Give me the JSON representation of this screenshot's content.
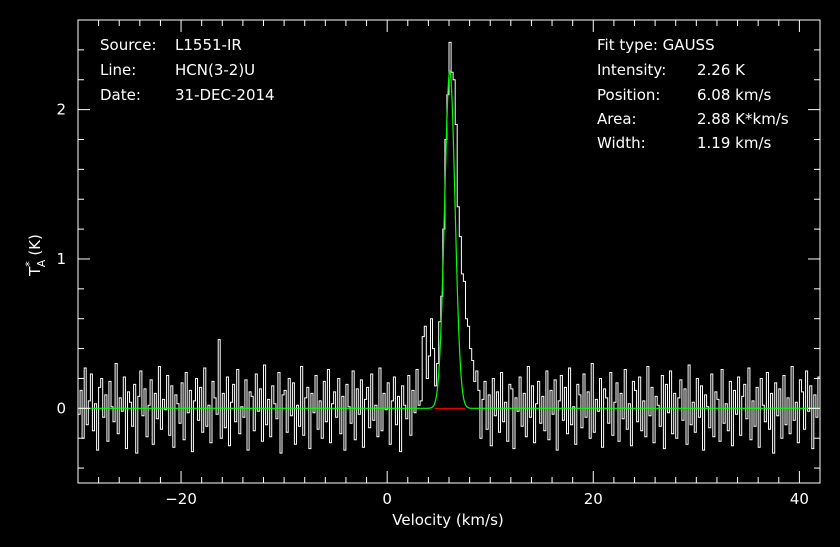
{
  "header_info": {
    "source_label": "Source:",
    "source_value": "L1551-IR",
    "line_label": "Line:",
    "line_value": "HCN(3-2)U",
    "date_label": "Date:",
    "date_value": "31-DEC-2014"
  },
  "fit_info": {
    "fit_type": "Fit type: GAUSS",
    "intensity_label": "Intensity:",
    "intensity_value": "2.26 K",
    "position_label": "Position:",
    "position_value": "6.08 km/s",
    "area_label": "Area:",
    "area_value": "2.88 K*km/s",
    "width_label": "Width:",
    "width_value": "1.19 km/s"
  },
  "chart_data": {
    "type": "line",
    "xlabel": "Velocity (km/s)",
    "ylabel": "T",
    "ylabel_sub": "A",
    "ylabel_sup": "*",
    "ylabel_unit": "(K)",
    "xlim": [
      -30,
      42
    ],
    "ylim": [
      -0.5,
      2.6
    ],
    "x_ticks": [
      -20,
      0,
      20,
      40
    ],
    "x_tick_labels": [
      "−20",
      "0",
      "20",
      "40"
    ],
    "y_ticks": [
      0,
      1,
      2
    ],
    "y_tick_labels": [
      "0",
      "1",
      "2"
    ],
    "colors": {
      "spectrum": "#ffffff",
      "fit": "#00ff00",
      "baseline": "#ff0000",
      "axes": "#ffffff"
    },
    "channel_start": -30,
    "channel_width": 0.2,
    "spectrum_noise": [
      -0.04,
      0.12,
      -0.2,
      0.27,
      -0.11,
      0.05,
      0.23,
      -0.15,
      0.03,
      -0.28,
      0.14,
      0.2,
      -0.06,
      0.09,
      -0.22,
      0.18,
      0.01,
      -0.09,
      0.3,
      -0.17,
      0.07,
      -0.02,
      0.21,
      -0.27,
      0.11,
      0.04,
      -0.12,
      0.16,
      -0.3,
      0.08,
      0.25,
      -0.05,
      0.13,
      -0.19,
      0.02,
      0.19,
      -0.24,
      0.1,
      -0.07,
      0.28,
      -0.14,
      0.06,
      -0.01,
      0.22,
      -0.18,
      0.15,
      -0.26,
      0.09,
      0.03,
      -0.1,
      0.17,
      -0.21,
      0.24,
      -0.03,
      0.12,
      -0.29,
      0.05,
      0.2,
      -0.08,
      0.14,
      -0.16,
      0.27,
      -0.12,
      0.02,
      -0.23,
      0.18,
      0.07,
      -0.04,
      0.46,
      -0.2,
      0.1,
      -0.13,
      0.21,
      -0.25,
      0.04,
      0.16,
      -0.09,
      0.26,
      -0.17,
      0.01,
      -0.06,
      0.19,
      -0.28,
      0.11,
      0.08,
      -0.15,
      0.23,
      -0.02,
      0.13,
      -0.22,
      0.29,
      -0.11,
      0.06,
      -0.19,
      0.15,
      0.03,
      -0.07,
      0.24,
      -0.3,
      0.09,
      0.12,
      -0.16,
      0.2,
      -0.05,
      0.17,
      -0.24,
      0.02,
      -0.12,
      0.28,
      -0.18,
      0.07,
      0.14,
      -0.27,
      0.1,
      -0.03,
      0.22,
      -0.14,
      0.05,
      -0.2,
      0.18,
      -0.09,
      0.26,
      -0.23,
      0.03,
      0.11,
      -0.06,
      0.2,
      -0.17,
      0.08,
      -0.28,
      0.16,
      0.01,
      -0.1,
      0.25,
      -0.21,
      0.13,
      -0.04,
      0.19,
      -0.26,
      0.06,
      0.14,
      -0.13,
      0.23,
      -0.08,
      0.02,
      -0.19,
      0.27,
      -0.15,
      0.1,
      -0.01,
      0.17,
      -0.24,
      0.05,
      0.21,
      -0.11,
      0.08,
      -0.29,
      0.15,
      0.02,
      -0.07,
      0.22,
      -0.18,
      0.12,
      -0.03,
      0.26,
      -0.2,
      0.06,
      0.18,
      -0.14,
      0.09,
      -0.25,
      0.2,
      -0.05,
      0.11,
      -0.16,
      0.24,
      -0.09,
      0.04,
      -0.22,
      0.16,
      0.13,
      -0.27,
      0.07,
      -0.02,
      0.21,
      -0.12,
      0.1,
      -0.19,
      0.28,
      -0.06,
      0.15,
      -0.23,
      0.03,
      0.18,
      -0.1,
      0.08,
      -0.15,
      0.25,
      -0.21,
      0.12,
      -0.04,
      0.19,
      -0.28,
      0.05,
      0.22,
      -0.08,
      0.14,
      -0.17,
      0.27,
      -0.11,
      0.01,
      -0.24,
      0.16,
      0.09,
      -0.13,
      0.23,
      -0.06,
      0.11,
      -0.2,
      0.3,
      -0.16,
      0.06,
      -0.02,
      0.2,
      -0.26,
      0.13,
      0.07,
      -0.1,
      0.24,
      -0.18,
      0.04,
      0.17,
      -0.22,
      0.1,
      -0.07,
      0.26,
      -0.14,
      0.03,
      -0.25,
      0.18,
      0.12,
      -0.09,
      0.21,
      -0.15,
      0.05,
      -0.19,
      0.28,
      -0.05,
      0.14,
      -0.23,
      0.08,
      0.02,
      -0.12,
      0.22,
      -0.27,
      0.16,
      -0.03,
      0.25,
      -0.17,
      0.1,
      -0.2,
      0.07,
      0.19,
      -0.08,
      0.13,
      -0.24,
      0.29,
      -0.11,
      0.04,
      -0.16,
      0.2,
      -0.06,
      0.15,
      -0.28,
      0.09,
      0.01,
      -0.13,
      0.23,
      -0.19,
      0.11,
      0.06,
      -0.22,
      0.26,
      -0.1,
      0.03,
      -0.15,
      0.18,
      -0.25,
      0.12,
      -0.04,
      0.21,
      -0.18,
      0.08,
      0.16,
      -0.07,
      0.27,
      -0.21,
      0.05,
      -0.12,
      0.14,
      -0.26,
      0.2,
      0.02,
      -0.09,
      0.24,
      -0.14,
      0.1,
      -0.3,
      0.17,
      -0.05,
      0.13,
      -0.2,
      0.22,
      -0.11,
      0.07,
      -0.17,
      0.28,
      -0.08,
      0.04,
      -0.23,
      0.19,
      0.11,
      -0.14,
      0.25,
      -0.02,
      0.15,
      -0.27,
      0.09,
      -0.06,
      0.21,
      -0.16,
      0.12,
      -0.22,
      0.03,
      0.18,
      -0.1,
      0.26,
      -0.19,
      0.06,
      -0.13,
      0.2,
      -0.24,
      0.14,
      0.08,
      -0.04,
      0.23,
      -0.18,
      0.1,
      -0.28,
      0.16,
      0.01
    ],
    "line_window": [
      3.0,
      9.0
    ],
    "line_channels": [
      0.02,
      0.05,
      0.48,
      0.55,
      0.2,
      0.35,
      0.6,
      0.4,
      0.15,
      0.3,
      0.58,
      0.75,
      1.2,
      1.8,
      2.1,
      2.45,
      2.25,
      2.2,
      1.9,
      1.35,
      1.15,
      0.9,
      0.85,
      0.6,
      0.55,
      0.4,
      0.32,
      0.18,
      0.25,
      0.12
    ],
    "fit": {
      "amplitude": 2.26,
      "center": 6.08,
      "fwhm": 1.19
    }
  }
}
